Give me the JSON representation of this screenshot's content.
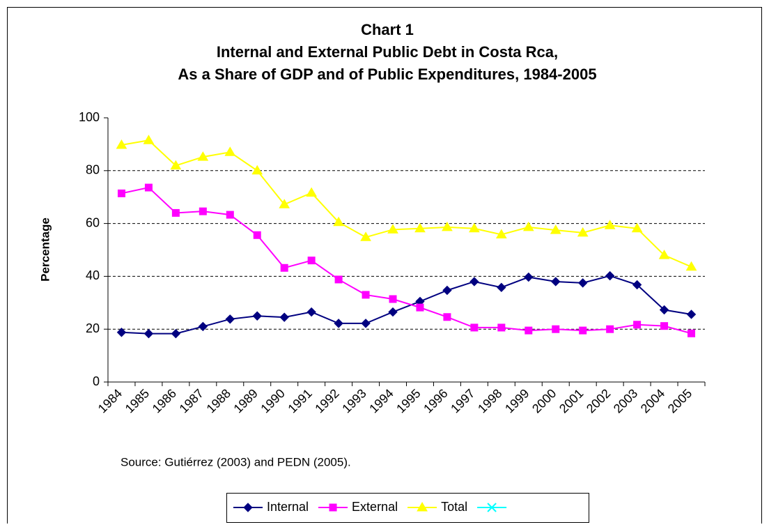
{
  "chart_data": {
    "type": "line",
    "title": [
      "Chart 1",
      "Internal and External Public Debt in Costa Rca,",
      "As a Share of GDP and of Public Expenditures, 1984-2005"
    ],
    "y_label": "Percentage",
    "note": "Source: Gutiérrez (2003) and PEDN (2005).",
    "categories": [
      "1984",
      "1985",
      "1986",
      "1987",
      "1988",
      "1989",
      "1990",
      "1991",
      "1992",
      "1993",
      "1994",
      "1995",
      "1996",
      "1997",
      "1998",
      "1999",
      "2000",
      "2001",
      "2002",
      "2003",
      "2004",
      "2005"
    ],
    "series": [
      {
        "name": "Internal",
        "color": "#000080",
        "marker": "diamond",
        "values": [
          18.8,
          18.3,
          18.3,
          21,
          23.8,
          25,
          24.5,
          26.5,
          22.2,
          22.2,
          26.5,
          30.5,
          34.7,
          38,
          35.8,
          39.7,
          38,
          37.5,
          40.2,
          36.8,
          27.3,
          25.6
        ]
      },
      {
        "name": "External",
        "color": "#ff00ff",
        "marker": "square",
        "values": [
          71.4,
          73.6,
          64,
          64.6,
          63.3,
          55.6,
          43.2,
          46,
          38.8,
          33,
          31.4,
          28.2,
          24.6,
          20.6,
          20.6,
          19.5,
          20,
          19.5,
          20,
          21.7,
          21.2,
          18.4
        ]
      },
      {
        "name": "Total",
        "color": "#ffff00",
        "marker": "triangle",
        "values": [
          89.7,
          91.5,
          81.9,
          85.2,
          87,
          80,
          67.2,
          71.6,
          60.5,
          54.8,
          57.7,
          58.1,
          58.6,
          58.1,
          55.8,
          58.6,
          57.5,
          56.5,
          59.3,
          58.1,
          48,
          43.6
        ]
      },
      {
        "color": "#00ffff",
        "marker": "x",
        "values": [
          null,
          null,
          null,
          null,
          null,
          null,
          null,
          null,
          null,
          null,
          null,
          null,
          null,
          null,
          null,
          null,
          null,
          null,
          null,
          null,
          null,
          null
        ]
      }
    ],
    "ylim": [
      0,
      100
    ],
    "yticks": [
      0,
      20,
      40,
      60,
      80,
      100
    ],
    "grid": true,
    "legend": "bottom"
  }
}
